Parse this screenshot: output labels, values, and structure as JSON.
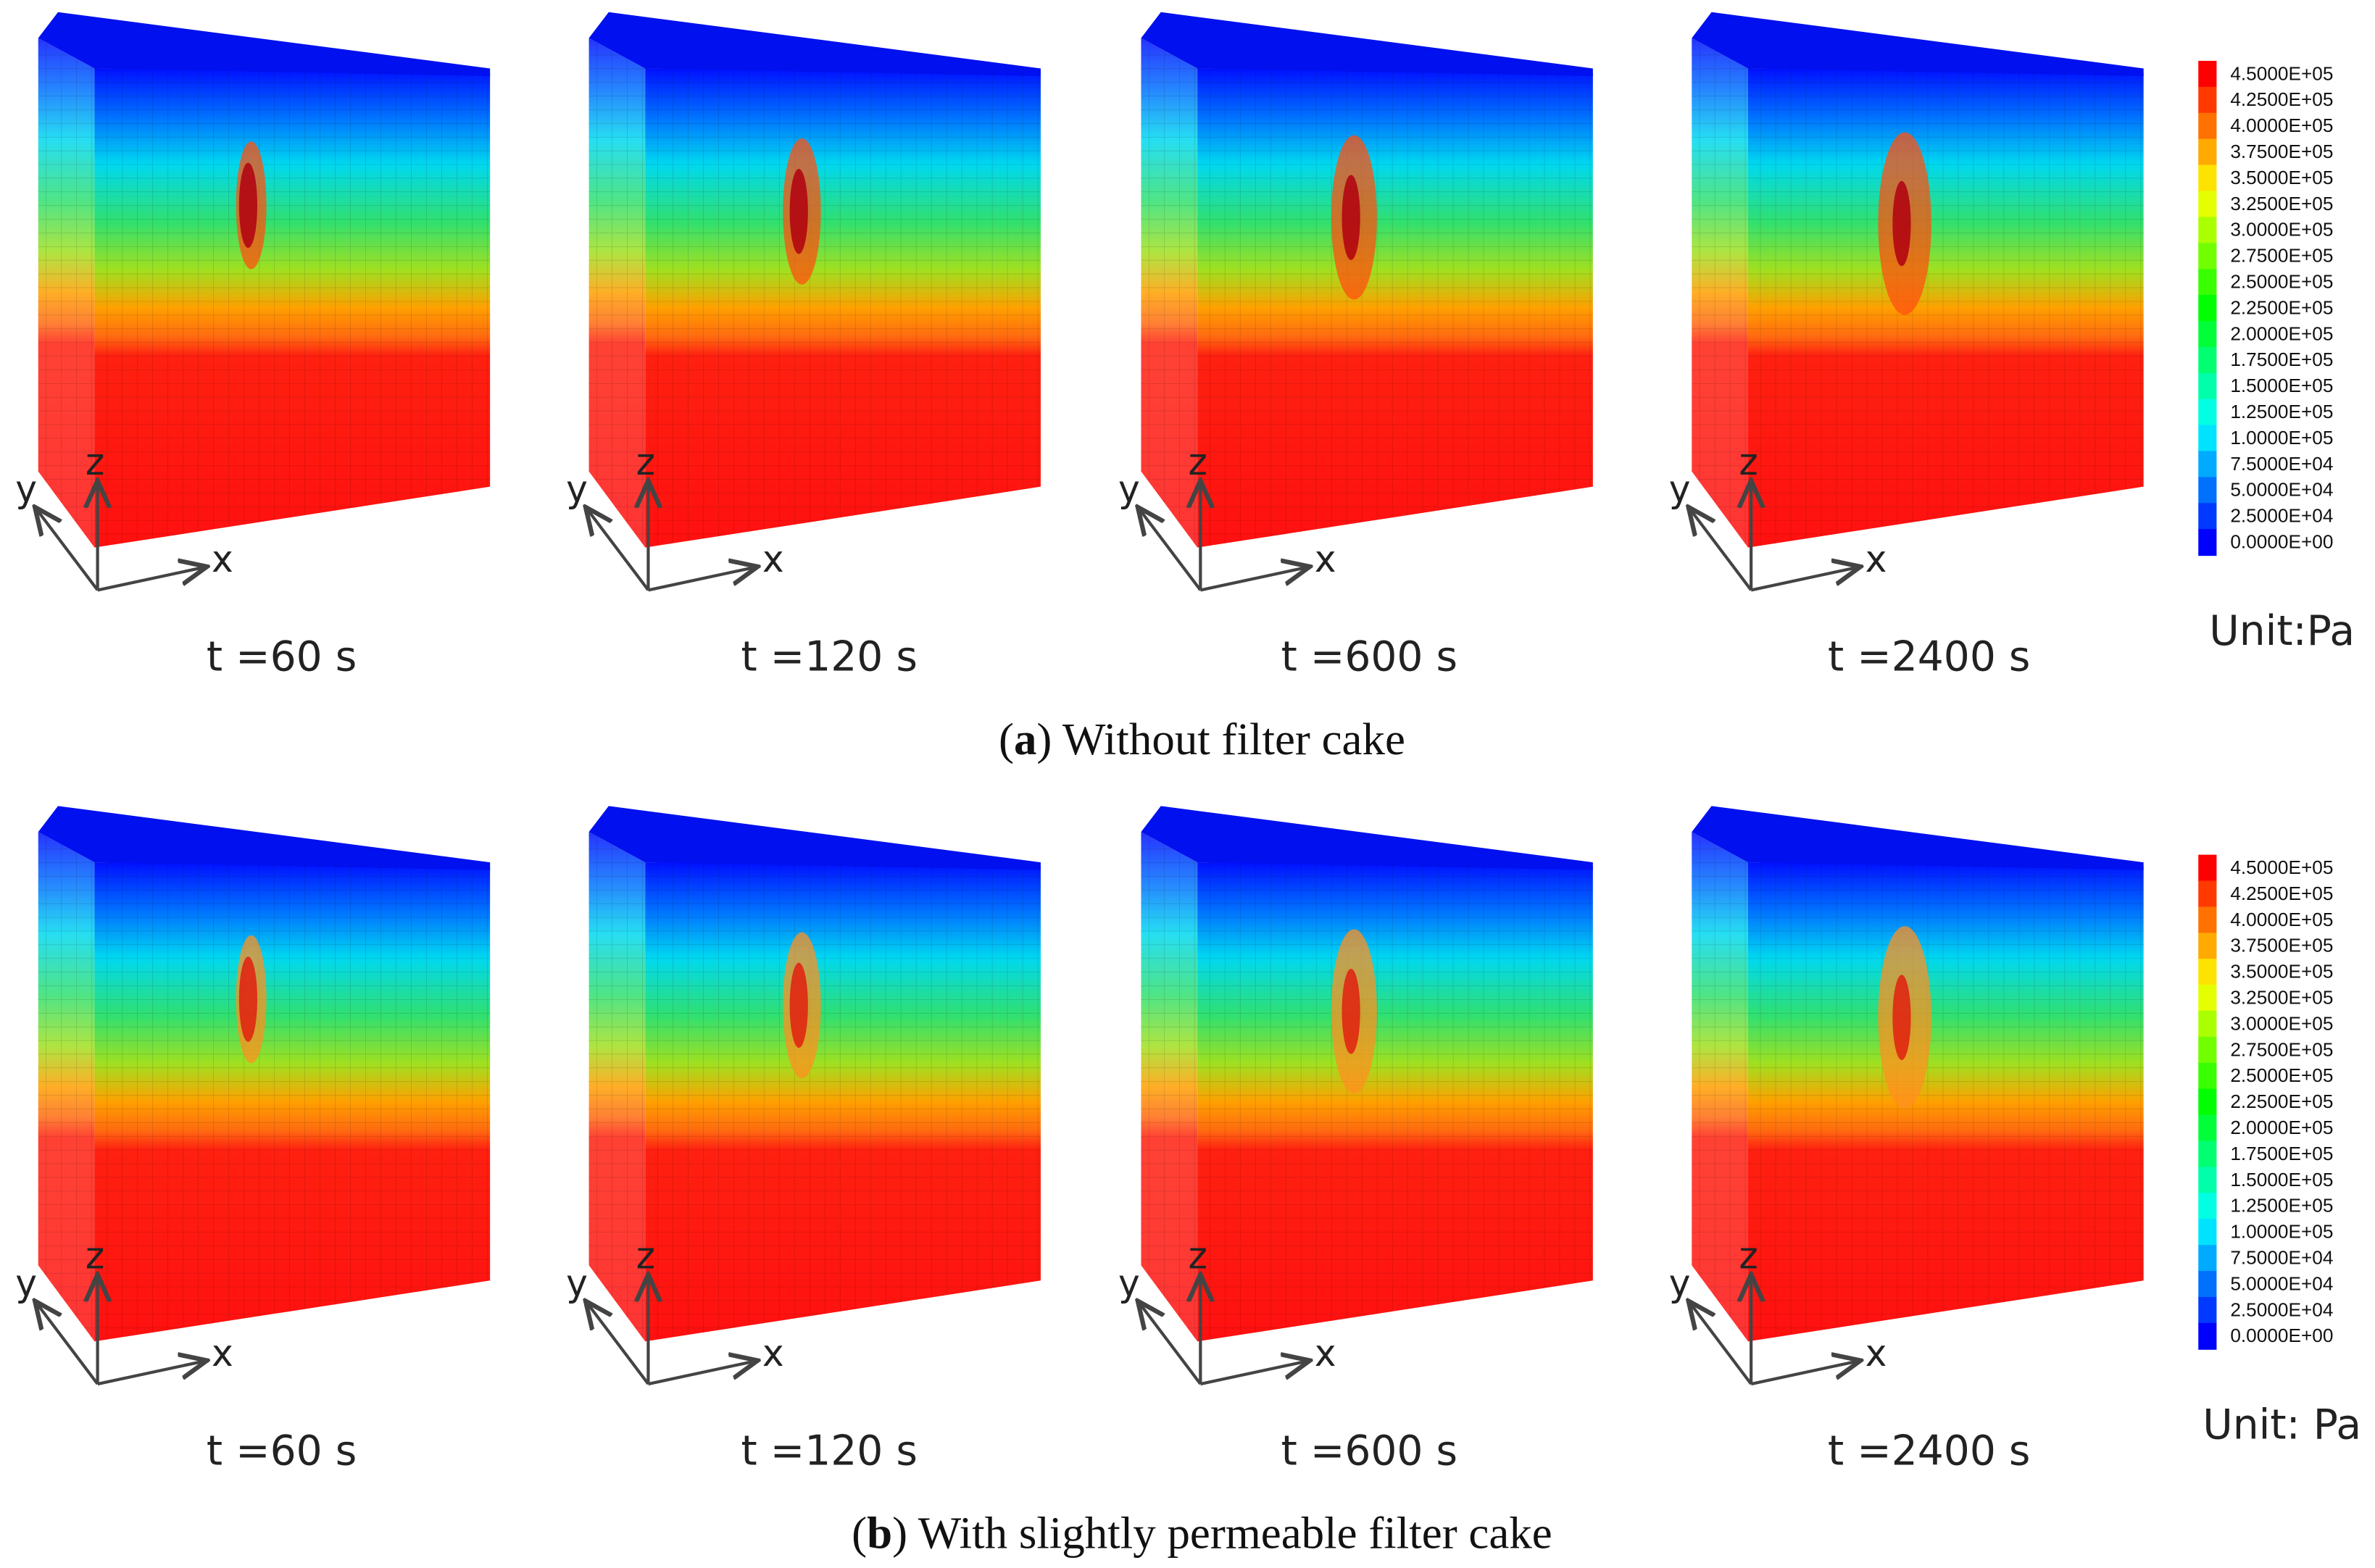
{
  "panels": [
    {
      "times": [
        "t =60 s",
        "t =120 s",
        "t =600 s",
        "t =2400 s"
      ],
      "axis_labels": [
        "x",
        "y",
        "z"
      ],
      "colorbar": {
        "labels": [
          "4.5000E+05",
          "4.2500E+05",
          "4.0000E+05",
          "3.7500E+05",
          "3.5000E+05",
          "3.2500E+05",
          "3.0000E+05",
          "2.7500E+05",
          "2.5000E+05",
          "2.2500E+05",
          "2.0000E+05",
          "1.7500E+05",
          "1.5000E+05",
          "1.2500E+05",
          "1.0000E+05",
          "7.5000E+04",
          "5.0000E+04",
          "2.5000E+04",
          "0.0000E+00"
        ],
        "unit": "Unit:Pa"
      },
      "caption": [
        "(",
        "a",
        ") Without filter cake"
      ]
    },
    {
      "times": [
        "t =60 s",
        "t =120 s",
        "t =600 s",
        "t =2400 s"
      ],
      "axis_labels": [
        "x",
        "y",
        "z"
      ],
      "colorbar": {
        "labels": [
          "4.5000E+05",
          "4.2500E+05",
          "4.0000E+05",
          "3.7500E+05",
          "3.5000E+05",
          "3.2500E+05",
          "3.0000E+05",
          "2.7500E+05",
          "2.5000E+05",
          "2.2500E+05",
          "2.0000E+05",
          "1.7500E+05",
          "1.5000E+05",
          "1.2500E+05",
          "1.0000E+05",
          "7.5000E+04",
          "5.0000E+04",
          "2.5000E+04",
          "0.0000E+00"
        ],
        "unit": "Unit: Pa"
      },
      "caption": [
        "(",
        "b",
        ") With slightly permeable filter cake"
      ]
    }
  ]
}
